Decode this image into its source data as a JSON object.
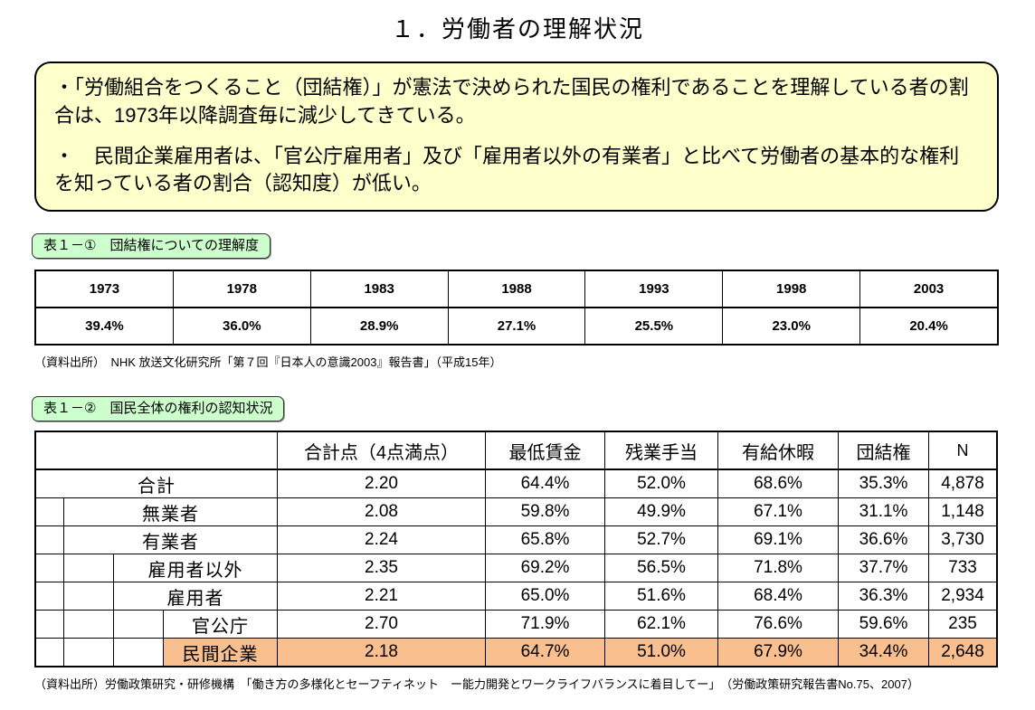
{
  "page": {
    "title": "１．労働者の理解状況"
  },
  "summary_box": {
    "bullet1": "・「労働組合をつくること（団結権）」が憲法で決められた国民の権利であることを理解している者の割合は、1973年以降調査毎に減少してきている。",
    "bullet2": "・　民間企業雇用者は、「官公庁雇用者」及び「雇用者以外の有業者」と比べて労働者の基本的な権利を知っている者の割合（認知度）が低い。"
  },
  "table1": {
    "label": "表１－①　団結権についての理解度",
    "years": [
      "1973",
      "1978",
      "1983",
      "1988",
      "1993",
      "1998",
      "2003"
    ],
    "values": [
      "39.4%",
      "36.0%",
      "28.9%",
      "27.1%",
      "25.5%",
      "23.0%",
      "20.4%"
    ],
    "source": "（資料出所）　NHK 放送文化研究所「第７回『日本人の意識2003』報告書」（平成15年）"
  },
  "table2": {
    "label": "表１－②　国民全体の権利の認知状況",
    "headers": [
      "合計点（4点満点）",
      "最低賃金",
      "残業手当",
      "有給休暇",
      "団結権",
      "N"
    ],
    "rows": [
      {
        "label": "合計",
        "indent": 0,
        "highlighted": false,
        "values": [
          "2.20",
          "64.4%",
          "52.0%",
          "68.6%",
          "35.3%",
          "4,878"
        ]
      },
      {
        "label": "無業者",
        "indent": 1,
        "highlighted": false,
        "values": [
          "2.08",
          "59.8%",
          "49.9%",
          "67.1%",
          "31.1%",
          "1,148"
        ]
      },
      {
        "label": "有業者",
        "indent": 1,
        "highlighted": false,
        "values": [
          "2.24",
          "65.8%",
          "52.7%",
          "69.1%",
          "36.6%",
          "3,730"
        ]
      },
      {
        "label": "雇用者以外",
        "indent": 2,
        "highlighted": false,
        "values": [
          "2.35",
          "69.2%",
          "56.5%",
          "71.8%",
          "37.7%",
          "733"
        ]
      },
      {
        "label": "雇用者",
        "indent": 2,
        "highlighted": false,
        "values": [
          "2.21",
          "65.0%",
          "51.6%",
          "68.4%",
          "36.3%",
          "2,934"
        ]
      },
      {
        "label": "官公庁",
        "indent": 3,
        "highlighted": false,
        "values": [
          "2.70",
          "71.9%",
          "62.1%",
          "76.6%",
          "59.6%",
          "235"
        ]
      },
      {
        "label": "民間企業",
        "indent": 3,
        "highlighted": true,
        "values": [
          "2.18",
          "64.7%",
          "51.0%",
          "67.9%",
          "34.4%",
          "2,648"
        ]
      }
    ],
    "source": "（資料出所）労働政策研究・研修機構　「働き方の多様化とセーフティネット　ー能力開発とワークライフバランスに着目してー」　（労働政策研究報告書No.75、2007）"
  },
  "colors": {
    "summary_bg": "#FFFFCC",
    "label_bg": "#CCFFCC",
    "highlight_bg": "#FABF8F"
  }
}
